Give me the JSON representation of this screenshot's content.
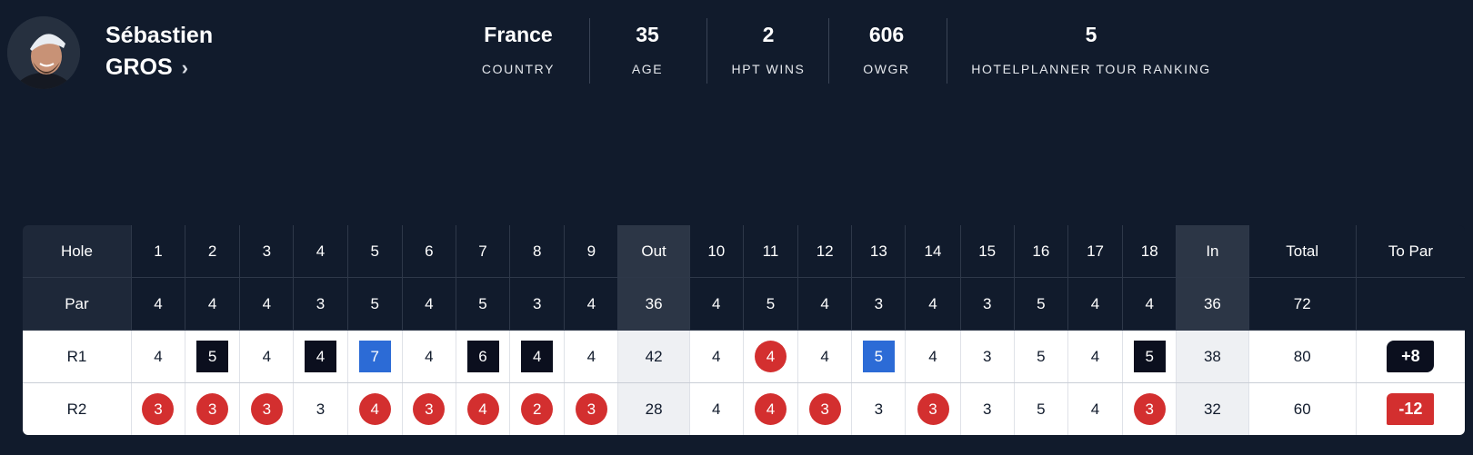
{
  "player": {
    "first_name": "Sébastien",
    "last_name": "GROS",
    "avatar_icon": "player-photo",
    "chevron_icon": "chevron-right-icon"
  },
  "stats": [
    {
      "value": "France",
      "label": "COUNTRY"
    },
    {
      "value": "35",
      "label": "AGE"
    },
    {
      "value": "2",
      "label": "HPT WINS"
    },
    {
      "value": "606",
      "label": "OWGR"
    },
    {
      "value": "5",
      "label": "HOTELPLANNER TOUR RANKING"
    }
  ],
  "colors": {
    "background": "#111b2c",
    "birdie": "#d32f2f",
    "bogey": "#0b0f1e",
    "double_bogey": "#2c6bd6"
  },
  "scorecard": {
    "hole_label": "Hole",
    "par_label": "Par",
    "out_label": "Out",
    "in_label": "In",
    "total_label": "Total",
    "to_par_label": "To Par",
    "holes_front": [
      "1",
      "2",
      "3",
      "4",
      "5",
      "6",
      "7",
      "8",
      "9"
    ],
    "holes_back": [
      "10",
      "11",
      "12",
      "13",
      "14",
      "15",
      "16",
      "17",
      "18"
    ],
    "par_front": [
      "4",
      "4",
      "4",
      "3",
      "5",
      "4",
      "5",
      "3",
      "4"
    ],
    "par_out": "36",
    "par_back": [
      "4",
      "5",
      "4",
      "3",
      "4",
      "3",
      "5",
      "4",
      "4"
    ],
    "par_in": "36",
    "par_total": "72",
    "rounds": [
      {
        "label": "R1",
        "front": [
          "4",
          "5",
          "4",
          "4",
          "7",
          "4",
          "6",
          "4",
          "4"
        ],
        "front_marks": [
          "",
          "bogey",
          "",
          "bogey",
          "double",
          "",
          "bogey",
          "bogey",
          ""
        ],
        "out": "42",
        "back": [
          "4",
          "4",
          "4",
          "5",
          "4",
          "3",
          "5",
          "4",
          "5"
        ],
        "back_marks": [
          "",
          "circle",
          "",
          "double",
          "",
          "",
          "",
          "",
          "bogey"
        ],
        "in": "38",
        "total": "80",
        "to_par": "+8",
        "to_par_style": "over"
      },
      {
        "label": "R2",
        "front": [
          "3",
          "3",
          "3",
          "3",
          "4",
          "3",
          "4",
          "2",
          "3"
        ],
        "front_marks": [
          "circle",
          "circle",
          "circle",
          "",
          "circle",
          "circle",
          "circle",
          "circle",
          "circle"
        ],
        "out": "28",
        "back": [
          "4",
          "4",
          "3",
          "3",
          "3",
          "3",
          "5",
          "4",
          "3"
        ],
        "back_marks": [
          "",
          "circle",
          "circle",
          "",
          "circle",
          "",
          "",
          "",
          "circle"
        ],
        "in": "32",
        "total": "60",
        "to_par": "-12",
        "to_par_style": "under"
      }
    ]
  }
}
